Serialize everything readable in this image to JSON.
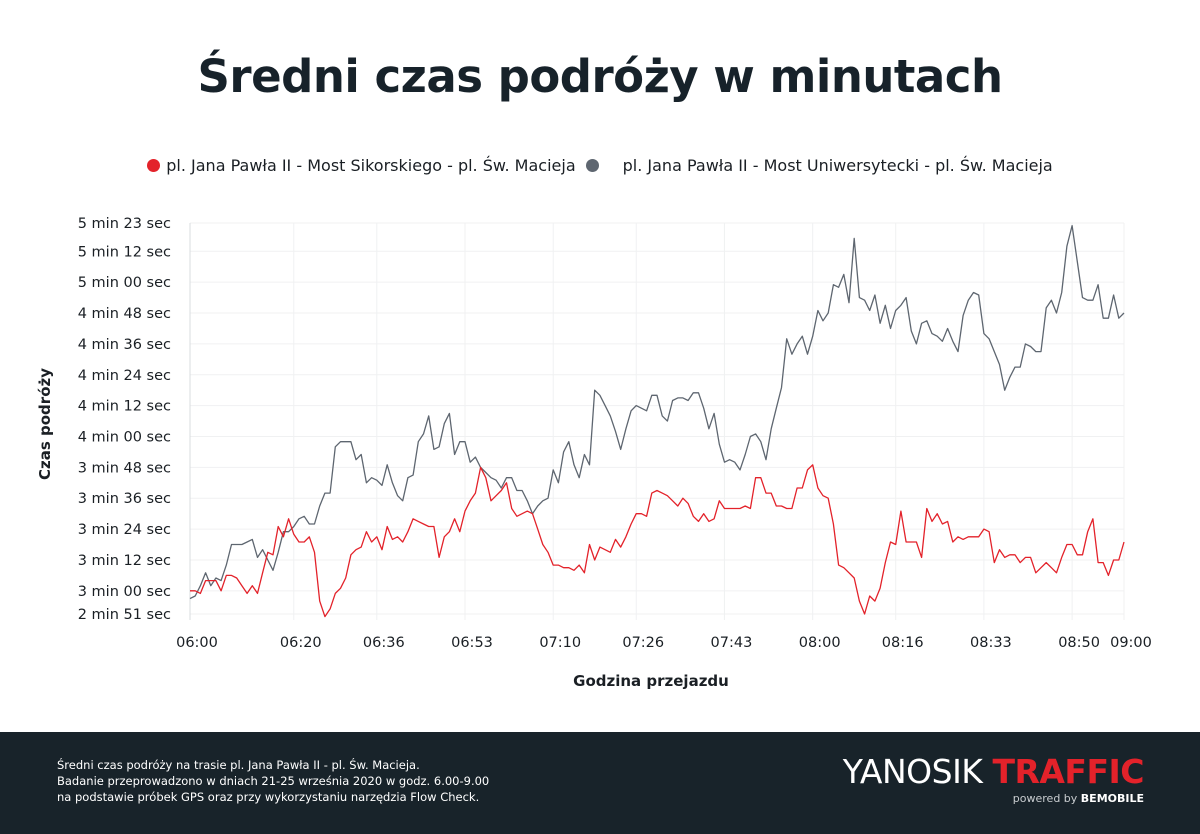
{
  "header": {
    "title": "Średni czas podróży w minutach"
  },
  "legend": [
    {
      "label": "pl. Jana Pawła II - Most Sikorskiego - pl. Św. Macieja",
      "color": "#e3222a"
    },
    {
      "label": "pl. Jana Pawła II - Most Uniwersytecki - pl. Św. Macieja",
      "color": "#5e6670"
    }
  ],
  "footer": {
    "lines": [
      "Średni czas podróży na trasie pl. Jana Pawła II - pl. Św. Macieja.",
      "Badanie przeprowadzono w dniach  21-25 września 2020 w godz. 6.00-9.00",
      "na podstawie próbek GPS oraz przy wykorzystaniu narzędzia Flow Check."
    ],
    "logo": {
      "part1": "YANOSIK",
      "part2": "TRAFFIC",
      "powered_by": "powered by",
      "brand": "BEMOBILE"
    }
  },
  "chart_data": {
    "type": "line",
    "title": "Średni czas podróży w minutach",
    "xlabel": "Godzina przejazdu",
    "ylabel": "Czas podróży",
    "x_unit": "minutes since 06:00",
    "y_unit": "seconds",
    "xlim": [
      0,
      180
    ],
    "ylim": [
      171,
      323
    ],
    "grid": true,
    "legend_position": "top-center",
    "x_ticks": [
      {
        "value": 0,
        "label": "06:00"
      },
      {
        "value": 20,
        "label": "06:20"
      },
      {
        "value": 36,
        "label": "06:36"
      },
      {
        "value": 53,
        "label": "06:53"
      },
      {
        "value": 70,
        "label": "07:10"
      },
      {
        "value": 86,
        "label": "07:26"
      },
      {
        "value": 103,
        "label": "07:43"
      },
      {
        "value": 120,
        "label": "08:00"
      },
      {
        "value": 136,
        "label": "08:16"
      },
      {
        "value": 153,
        "label": "08:33"
      },
      {
        "value": 170,
        "label": "08:50"
      },
      {
        "value": 180,
        "label": "09:00"
      }
    ],
    "y_ticks": [
      {
        "value": 323,
        "label": "5 min 23 sec"
      },
      {
        "value": 312,
        "label": "5 min 12 sec"
      },
      {
        "value": 300,
        "label": "5 min 00 sec"
      },
      {
        "value": 288,
        "label": "4 min 48 sec"
      },
      {
        "value": 276,
        "label": "4 min 36 sec"
      },
      {
        "value": 264,
        "label": "4 min 24 sec"
      },
      {
        "value": 252,
        "label": "4 min 12 sec"
      },
      {
        "value": 240,
        "label": "4 min 00 sec"
      },
      {
        "value": 228,
        "label": "3 min 48 sec"
      },
      {
        "value": 216,
        "label": "3 min 36 sec"
      },
      {
        "value": 204,
        "label": "3 min 24 sec"
      },
      {
        "value": 192,
        "label": "3 min 12 sec"
      },
      {
        "value": 180,
        "label": "3 min 00 sec"
      },
      {
        "value": 171,
        "label": "2 min 51 sec"
      }
    ],
    "series": [
      {
        "name": "pl. Jana Pawła II - Most Sikorskiego - pl. Św. Macieja",
        "color": "#e3222a",
        "values": [
          180,
          180,
          179,
          184,
          184,
          184,
          180,
          186,
          186,
          185,
          182,
          179,
          182,
          179,
          187,
          195,
          194,
          205,
          201,
          208,
          202,
          199,
          199,
          201,
          195,
          176,
          170,
          173,
          179,
          181,
          185,
          194,
          196,
          197,
          203,
          199,
          201,
          196,
          205,
          200,
          201,
          199,
          203,
          208,
          207,
          206,
          205,
          205,
          193,
          201,
          203,
          208,
          203,
          211,
          215,
          218,
          228,
          224,
          215,
          217,
          219,
          222,
          212,
          209,
          210,
          211,
          210,
          204,
          198,
          195,
          190,
          190,
          189,
          189,
          188,
          190,
          187,
          198,
          192,
          197,
          196,
          195,
          200,
          197,
          201,
          206,
          210,
          210,
          209,
          218,
          219,
          218,
          217,
          215,
          213,
          216,
          214,
          209,
          207,
          210,
          207,
          208,
          215,
          212,
          212,
          212,
          212,
          213,
          212,
          224,
          224,
          218,
          218,
          213,
          213,
          212,
          212,
          220,
          220,
          227,
          229,
          220,
          217,
          216,
          206,
          190,
          189,
          187,
          185,
          176,
          171,
          178,
          176,
          181,
          191,
          199,
          198,
          211,
          199,
          199,
          199,
          193,
          212,
          207,
          210,
          206,
          207,
          199,
          201,
          200,
          201,
          201,
          201,
          204,
          203,
          191,
          196,
          193,
          194,
          194,
          191,
          193,
          193,
          187,
          189,
          191,
          189,
          187,
          193,
          198,
          198,
          194,
          194,
          203,
          208,
          191,
          191,
          186,
          192,
          192,
          199
        ]
      },
      {
        "name": "pl. Jana Pawła II - Most Uniwersytecki - pl. Św. Macieja",
        "color": "#5e6670",
        "values": [
          177,
          178,
          182,
          187,
          182,
          185,
          184,
          190,
          198,
          198,
          198,
          199,
          200,
          193,
          196,
          192,
          188,
          195,
          203,
          203,
          205,
          208,
          209,
          206,
          206,
          213,
          218,
          218,
          236,
          238,
          238,
          238,
          231,
          233,
          222,
          224,
          223,
          221,
          229,
          222,
          217,
          215,
          224,
          225,
          238,
          241,
          248,
          235,
          236,
          245,
          249,
          233,
          238,
          238,
          230,
          232,
          228,
          226,
          224,
          223,
          220,
          224,
          224,
          219,
          219,
          215,
          210,
          213,
          215,
          216,
          227,
          222,
          234,
          238,
          229,
          224,
          233,
          229,
          258,
          256,
          252,
          248,
          242,
          235,
          243,
          250,
          252,
          251,
          250,
          256,
          256,
          248,
          246,
          254,
          255,
          255,
          254,
          257,
          257,
          251,
          243,
          249,
          237,
          230,
          231,
          230,
          227,
          233,
          240,
          241,
          238,
          231,
          243,
          251,
          259,
          278,
          272,
          276,
          279,
          272,
          279,
          289,
          285,
          288,
          299,
          298,
          303,
          292,
          317,
          294,
          293,
          289,
          295,
          284,
          291,
          282,
          289,
          291,
          294,
          281,
          276,
          284,
          285,
          280,
          279,
          277,
          282,
          277,
          273,
          287,
          293,
          296,
          295,
          280,
          278,
          273,
          268,
          258,
          263,
          267,
          267,
          276,
          275,
          273,
          273,
          290,
          293,
          288,
          296,
          314,
          322,
          308,
          294,
          293,
          293,
          299,
          286,
          286,
          295,
          286,
          288
        ]
      }
    ]
  }
}
